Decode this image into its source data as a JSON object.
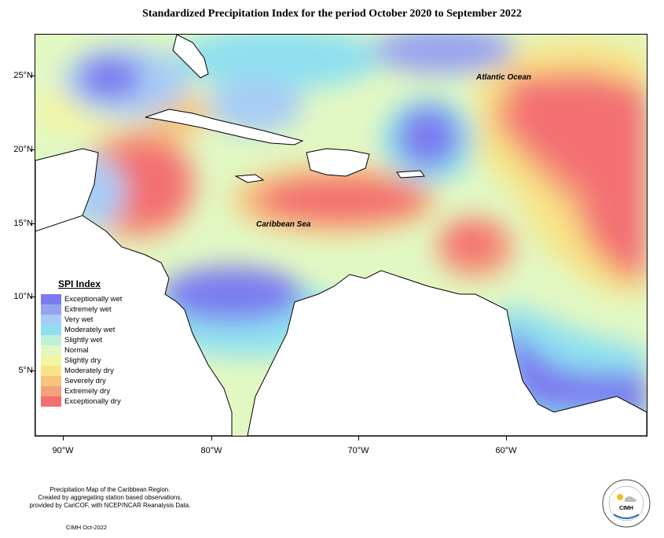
{
  "title": "Standardized Precipitation Index for the period October 2020 to September 2022",
  "latitude_ticks": [
    "25°N",
    "20°N",
    "15°N",
    "10°N",
    "5°N"
  ],
  "longitude_ticks": [
    "90°W",
    "80°W",
    "70°W",
    "60°W"
  ],
  "labels": {
    "atlantic": "Atlantic Ocean",
    "caribbean": "Caribbean Sea"
  },
  "legend": {
    "title": "SPI Index",
    "items": [
      {
        "label": "Exceptionally wet",
        "color": "#7b7bef"
      },
      {
        "label": "Extremely wet",
        "color": "#97a3f0"
      },
      {
        "label": "Very wet",
        "color": "#a8ccf5"
      },
      {
        "label": "Moderately wet",
        "color": "#8ee0f0"
      },
      {
        "label": "Slightly wet",
        "color": "#bff0d8"
      },
      {
        "label": "Normal",
        "color": "#e2f8c3"
      },
      {
        "label": "Slightly dry",
        "color": "#f5f4a0"
      },
      {
        "label": "Moderately dry",
        "color": "#f7e487"
      },
      {
        "label": "Severely dry",
        "color": "#f7c47c"
      },
      {
        "label": "Extremely dry",
        "color": "#f4a07a"
      },
      {
        "label": "Exceptionally dry",
        "color": "#f36f72"
      }
    ]
  },
  "footer": {
    "lines": [
      "Precipitation Map of the Caribbean Region.",
      "Created by aggregating station based observations,",
      "provided by CariCOF, with NCEP/NCAR Reanalysis Data."
    ],
    "date": "CIMH Oct-2022",
    "logo_text": "CIMH"
  }
}
